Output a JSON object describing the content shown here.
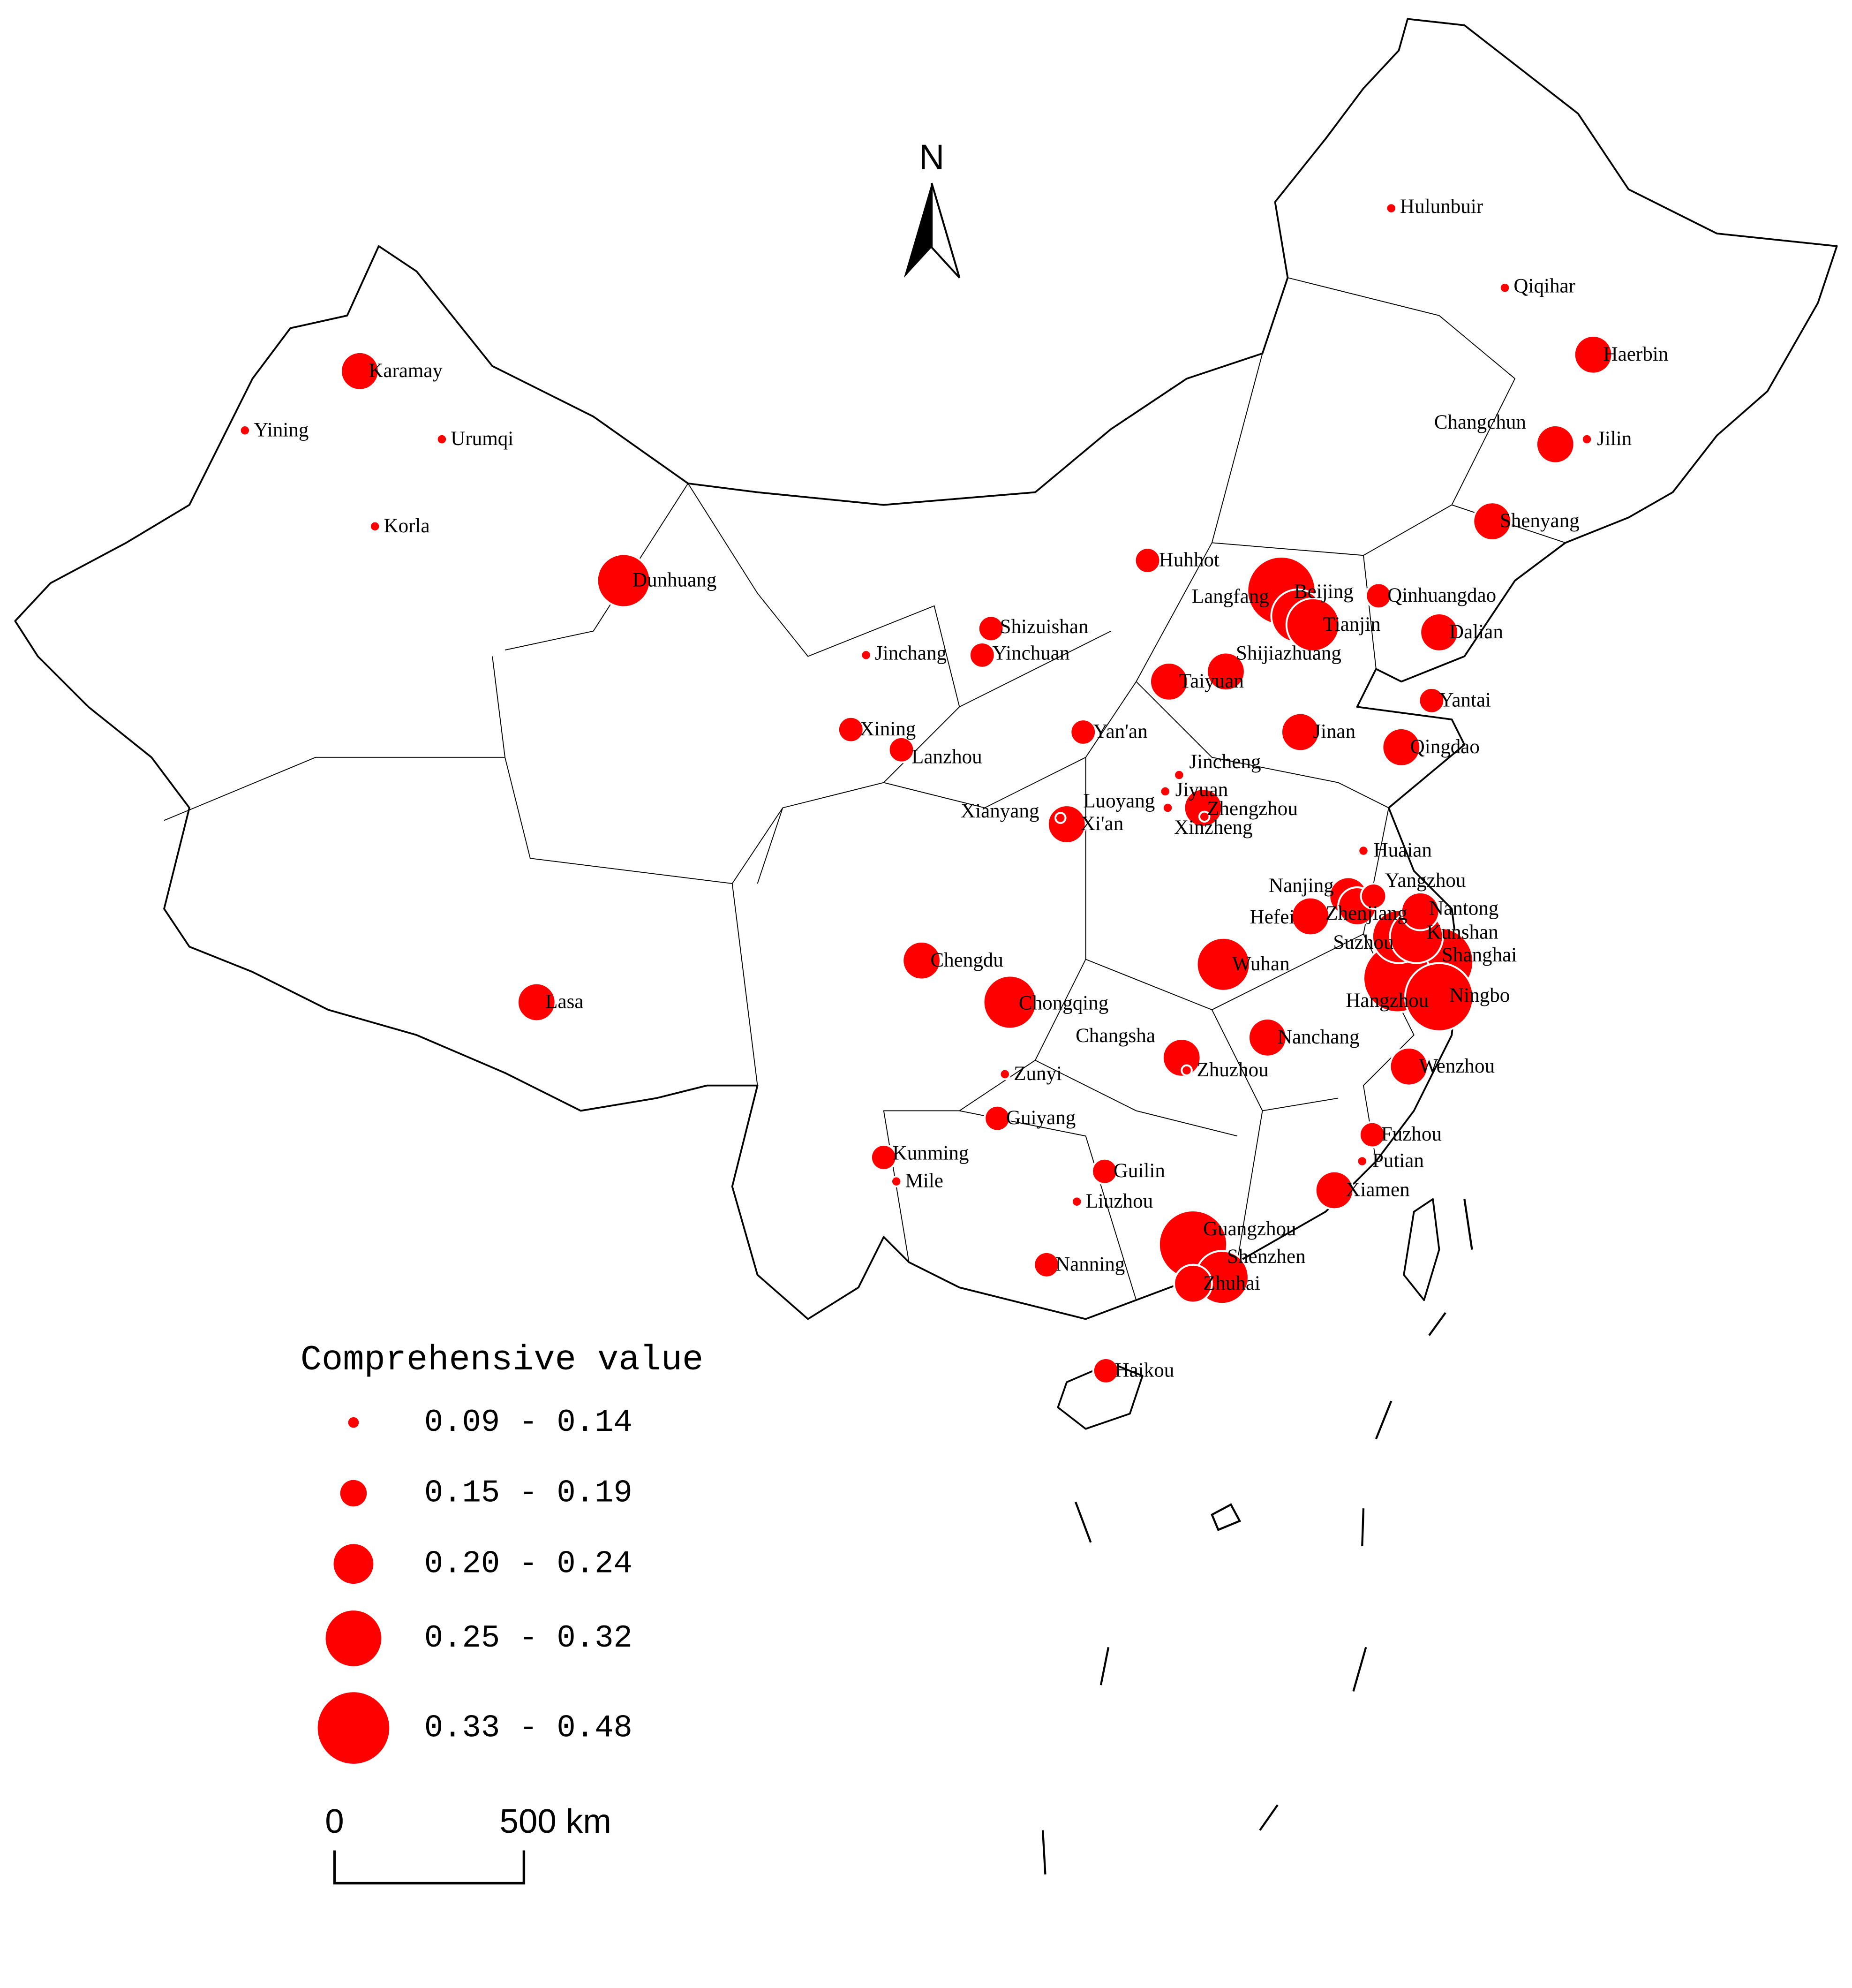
{
  "north": "N",
  "legend": {
    "title": "Comprehensive value",
    "classes": [
      {
        "label": "0.09 - 0.14",
        "cities": [
          "Hulunbuir",
          "Qiqihar",
          "Jilin",
          "Yining",
          "Urumqi",
          "Korla",
          "Jinchang",
          "Jincheng",
          "Jiyuan",
          "Luoyang",
          "Xianyang",
          "Xinzheng",
          "Huaian",
          "Zhuzhou",
          "Zunyi",
          "Mile",
          "Putian",
          "Liuzhou"
        ]
      },
      {
        "label": "0.15 - 0.19",
        "cities": [
          "Huhhot",
          "Qinhuangdao",
          "Shizuishan",
          "Yinchuan",
          "Xining",
          "Yan'an",
          "Lanzhou",
          "Yantai",
          "Yangzhou",
          "Guiyang",
          "Kunming",
          "Guilin",
          "Nanning",
          "Haikou",
          "Fuzhou"
        ]
      },
      {
        "label": "0.20 - 0.24",
        "cities": [
          "Karamay",
          "Haerbin",
          "Changchun",
          "Shenyang",
          "Dalian",
          "Shijiazhuang",
          "Taiyuan",
          "Jinan",
          "Qingdao",
          "Zhengzhou",
          "Xi'an",
          "Nanjing",
          "Zhenjiang",
          "Hefei",
          "Nantong",
          "Chengdu",
          "Lasa",
          "Nanchang",
          "Changsha",
          "Wenzhou",
          "Xiamen",
          "Zhuhai"
        ]
      },
      {
        "label": "0.25 - 0.32",
        "cities": [
          "Dunhuang",
          "Langfang",
          "Tianjin",
          "Suzhou",
          "Kunshan",
          "Wuhan",
          "Chongqing",
          "Shenzhen"
        ]
      },
      {
        "label": "0.33 - 0.48",
        "cities": [
          "Beijing",
          "Shanghai",
          "Hangzhou",
          "Ningbo",
          "Guangzhou"
        ]
      }
    ]
  },
  "scale_bar": {
    "start": "0",
    "end": "500 km"
  }
}
